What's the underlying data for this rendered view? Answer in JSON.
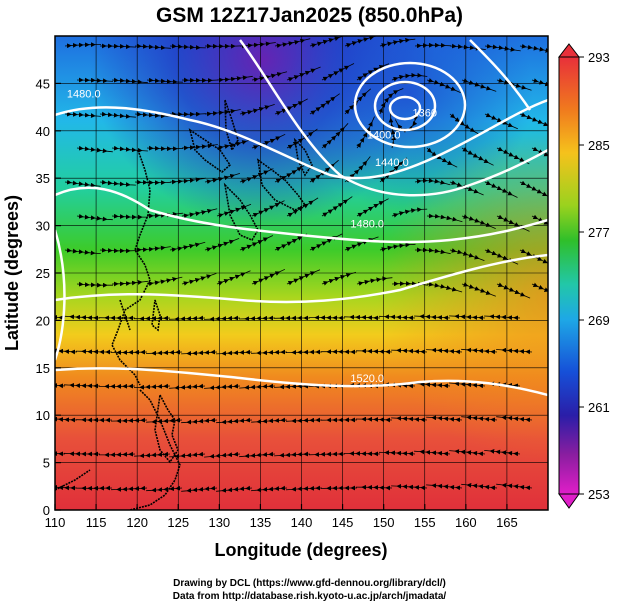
{
  "title": "GSM 12Z17Jan2025 (850.0hPa)",
  "credits": {
    "line1": "Drawing by DCL (https://www.gfd-dennou.org/library/dcl/)",
    "line2": "Data from http://database.rish.kyoto-u.ac.jp/arch/jmadata/"
  },
  "map": {
    "xlabel": "Longitude (degrees)",
    "ylabel": "Latitude  (degrees)",
    "xlim": [
      110,
      170
    ],
    "ylim": [
      0,
      50
    ],
    "x_ticks": [
      110,
      115,
      120,
      125,
      130,
      135,
      140,
      145,
      150,
      155,
      160,
      165
    ],
    "y_ticks": [
      0,
      5,
      10,
      15,
      20,
      25,
      30,
      35,
      40,
      45
    ],
    "grid": true
  },
  "colorbar": {
    "tick_labels": [
      "293",
      "285",
      "277",
      "269",
      "261",
      "253"
    ],
    "colors": [
      "#e8303a",
      "#f07a1e",
      "#f5c21c",
      "#9ad21e",
      "#2fbf2a",
      "#22c7a8",
      "#1ea8e6",
      "#1650d8",
      "#2a1ea8",
      "#8a1ea0",
      "#e01ec8"
    ]
  },
  "contours": [
    {
      "label": "1360",
      "lon": 155,
      "lat": 41.5
    },
    {
      "label": "1400.0",
      "lon": 150,
      "lat": 39.2
    },
    {
      "label": "1440.0",
      "lon": 151,
      "lat": 36.3
    },
    {
      "label": "1480.0",
      "lon": 148,
      "lat": 29.8
    },
    {
      "label": "1480.0",
      "lon": 113.5,
      "lat": 43.5
    },
    {
      "label": "1520.0",
      "lon": 148,
      "lat": 13.5
    }
  ]
}
